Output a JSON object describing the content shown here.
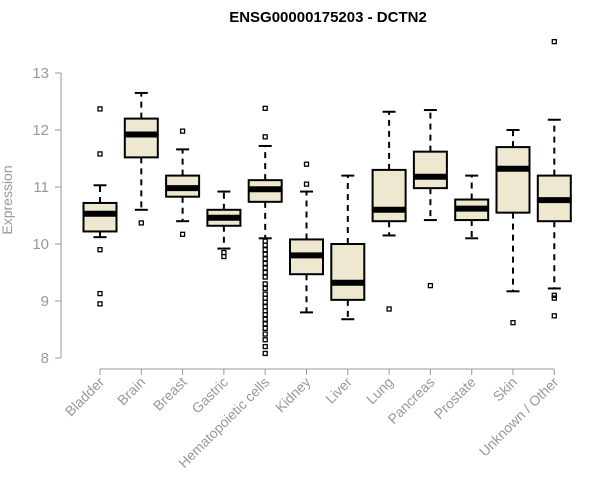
{
  "chart_data": {
    "type": "boxplot",
    "title": "ENSG00000175203 - DCTN2",
    "xlabel": "",
    "ylabel": "Expression",
    "ylim": [
      8,
      13.5
    ],
    "yticks": [
      "8",
      "9",
      "10",
      "11",
      "12",
      "13"
    ],
    "categories": [
      "Bladder",
      "Brain",
      "Breast",
      "Gastric",
      "Hematopoietic cells",
      "Kidney",
      "Liver",
      "Lung",
      "Pancreas",
      "Prostate",
      "Skin",
      "Unknown / Other"
    ],
    "boxes": [
      {
        "q1": 10.22,
        "median": 10.53,
        "q3": 10.72,
        "low": 10.12,
        "high": 11.03,
        "outliers": [
          12.37,
          11.58,
          9.9,
          9.13,
          8.95
        ]
      },
      {
        "q1": 11.52,
        "median": 11.92,
        "q3": 12.2,
        "low": 10.6,
        "high": 12.65,
        "outliers": [
          10.37
        ]
      },
      {
        "q1": 10.83,
        "median": 10.98,
        "q3": 11.2,
        "low": 10.4,
        "high": 11.66,
        "outliers": [
          11.98,
          10.17
        ]
      },
      {
        "q1": 10.32,
        "median": 10.46,
        "q3": 10.6,
        "low": 9.92,
        "high": 10.92,
        "outliers": [
          9.85,
          9.78
        ]
      },
      {
        "q1": 10.74,
        "median": 10.96,
        "q3": 11.12,
        "low": 10.1,
        "high": 11.72,
        "outliers": [
          12.38,
          11.88,
          10.05,
          9.98,
          9.9,
          9.82,
          9.74,
          9.66,
          9.58,
          9.5,
          9.42,
          9.3,
          9.22,
          9.12,
          9.05,
          8.98,
          8.9,
          8.83,
          8.76,
          8.68,
          8.6,
          8.52,
          8.42,
          8.32,
          8.2,
          8.08
        ]
      },
      {
        "q1": 9.47,
        "median": 9.8,
        "q3": 10.08,
        "low": 8.8,
        "high": 10.92,
        "outliers": [
          11.4,
          11.05
        ]
      },
      {
        "q1": 9.02,
        "median": 9.32,
        "q3": 10.0,
        "low": 8.68,
        "high": 11.2,
        "outliers": []
      },
      {
        "q1": 10.4,
        "median": 10.6,
        "q3": 11.3,
        "low": 10.15,
        "high": 12.32,
        "outliers": [
          8.86
        ]
      },
      {
        "q1": 10.98,
        "median": 11.18,
        "q3": 11.62,
        "low": 10.42,
        "high": 12.35,
        "outliers": [
          9.27
        ]
      },
      {
        "q1": 10.42,
        "median": 10.62,
        "q3": 10.78,
        "low": 10.1,
        "high": 11.2,
        "outliers": []
      },
      {
        "q1": 10.55,
        "median": 11.32,
        "q3": 11.7,
        "low": 9.17,
        "high": 12.0,
        "outliers": [
          8.62
        ]
      },
      {
        "q1": 10.4,
        "median": 10.77,
        "q3": 11.2,
        "low": 9.22,
        "high": 12.18,
        "outliers": [
          13.55,
          9.1,
          9.05,
          8.74
        ]
      }
    ]
  }
}
